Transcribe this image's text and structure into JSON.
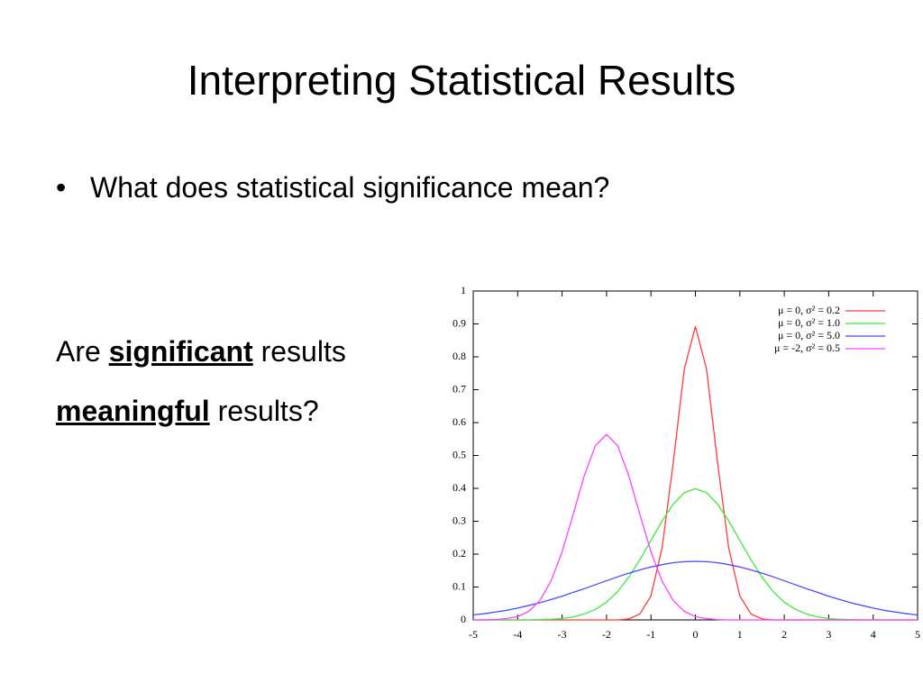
{
  "title": "Interpreting Statistical Results",
  "bullets": [
    "What does statistical significance mean?"
  ],
  "paragraphs": [
    {
      "before": "Are",
      "emphasis": "significant",
      "after": "results"
    },
    {
      "emphasis": "meaningful",
      "after": "results?"
    }
  ],
  "chart_data": {
    "type": "line",
    "x": [
      -5,
      -4.75,
      -4.5,
      -4.25,
      -4,
      -3.75,
      -3.5,
      -3.25,
      -3,
      -2.75,
      -2.5,
      -2.25,
      -2,
      -1.75,
      -1.5,
      -1.25,
      -1,
      -0.75,
      -0.5,
      -0.25,
      0,
      0.25,
      0.5,
      0.75,
      1,
      1.25,
      1.5,
      1.75,
      2,
      2.25,
      2.5,
      2.75,
      3,
      3.25,
      3.5,
      3.75,
      4,
      4.25,
      4.5,
      4.75,
      5
    ],
    "series": [
      {
        "name": "μ = 0, σ² = 0.2",
        "color": "#ff3b3b",
        "values": [
          0,
          0,
          0,
          0,
          0,
          0,
          0,
          0,
          0,
          0,
          0,
          0,
          0,
          0,
          0.003,
          0.018,
          0.073,
          0.219,
          0.477,
          0.763,
          0.892,
          0.763,
          0.477,
          0.219,
          0.073,
          0.018,
          0.003,
          0,
          0,
          0,
          0,
          0,
          0,
          0,
          0,
          0,
          0,
          0,
          0,
          0,
          0
        ]
      },
      {
        "name": "μ = 0, σ² = 1.0",
        "color": "#3ee83e",
        "values": [
          0,
          0,
          0,
          0,
          0,
          0,
          0.001,
          0.002,
          0.004,
          0.009,
          0.018,
          0.032,
          0.054,
          0.086,
          0.13,
          0.183,
          0.242,
          0.301,
          0.352,
          0.387,
          0.399,
          0.387,
          0.352,
          0.301,
          0.242,
          0.183,
          0.13,
          0.086,
          0.054,
          0.032,
          0.018,
          0.009,
          0.004,
          0.002,
          0.001,
          0,
          0,
          0,
          0,
          0,
          0
        ]
      },
      {
        "name": "μ = 0, σ² = 5.0",
        "color": "#4a4aff",
        "values": [
          0.015,
          0.019,
          0.024,
          0.029,
          0.036,
          0.044,
          0.052,
          0.062,
          0.072,
          0.084,
          0.095,
          0.107,
          0.119,
          0.131,
          0.142,
          0.152,
          0.161,
          0.168,
          0.174,
          0.177,
          0.178,
          0.177,
          0.174,
          0.168,
          0.161,
          0.152,
          0.142,
          0.131,
          0.119,
          0.107,
          0.095,
          0.084,
          0.072,
          0.062,
          0.052,
          0.044,
          0.036,
          0.029,
          0.024,
          0.019,
          0.015
        ]
      },
      {
        "name": "μ = -2, σ² = 0.5",
        "color": "#ff40ff",
        "values": [
          0,
          0,
          0.001,
          0.004,
          0.01,
          0.026,
          0.059,
          0.118,
          0.207,
          0.321,
          0.439,
          0.53,
          0.564,
          0.53,
          0.439,
          0.321,
          0.207,
          0.118,
          0.059,
          0.026,
          0.01,
          0.004,
          0.001,
          0,
          0,
          0,
          0,
          0,
          0,
          0,
          0,
          0,
          0,
          0,
          0,
          0,
          0,
          0,
          0,
          0,
          0
        ]
      }
    ],
    "xlim": [
      -5,
      5
    ],
    "xticks": [
      -5,
      -4,
      -3,
      -2,
      -1,
      0,
      1,
      2,
      3,
      4,
      5
    ],
    "ylim": [
      0,
      1
    ],
    "yticks": [
      0,
      0.1,
      0.2,
      0.3,
      0.4,
      0.5,
      0.6,
      0.7,
      0.8,
      0.9,
      1
    ],
    "grid": false,
    "legend": "top-right"
  }
}
